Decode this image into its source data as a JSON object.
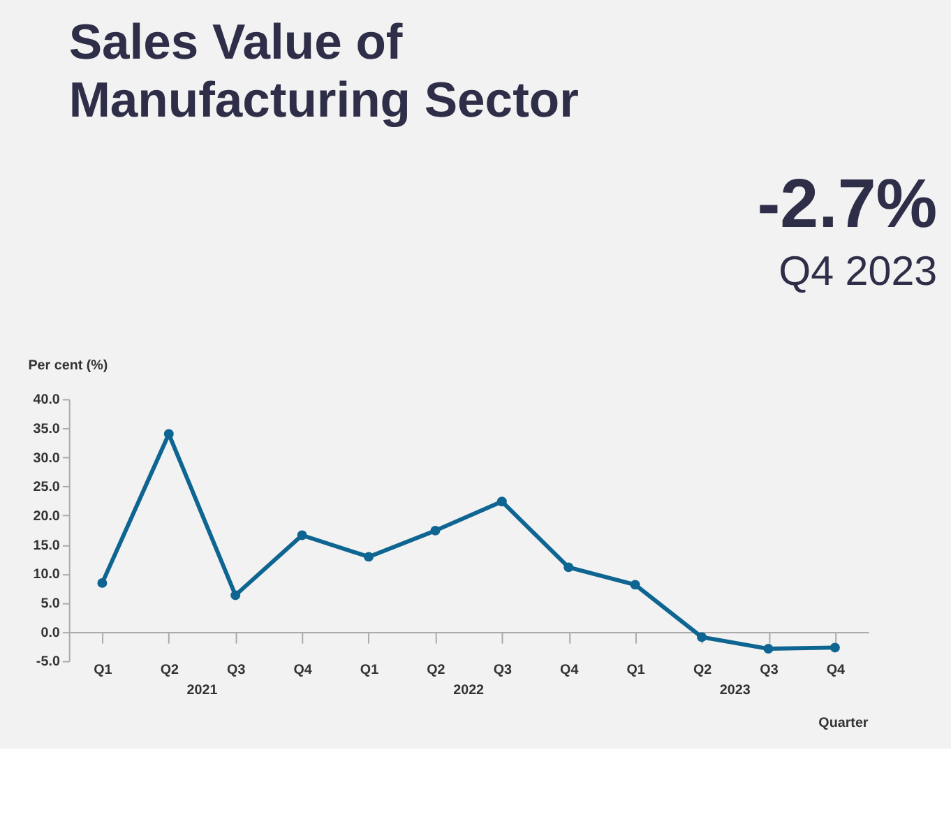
{
  "chart_data": {
    "type": "line",
    "title": "Sales Value of Manufacturing Sector",
    "ylabel": "Per cent (%)",
    "xlabel": "Quarter",
    "categories": [
      "Q1",
      "Q2",
      "Q3",
      "Q4",
      "Q1",
      "Q2",
      "Q3",
      "Q4",
      "Q1",
      "Q2",
      "Q3",
      "Q4"
    ],
    "series": [
      {
        "color": "#0e6591",
        "values": [
          8.4,
          34.0,
          6.3,
          16.6,
          12.9,
          17.4,
          22.4,
          11.1,
          8.1,
          -0.9,
          -2.9,
          -2.7
        ]
      }
    ],
    "annotations": [
      "-2.7%",
      "Q4 2023",
      "2021",
      "2022",
      "2023"
    ],
    "ylim": [
      -5,
      40
    ],
    "yticks": [
      {
        "value": -5,
        "label": "-5.0"
      },
      {
        "value": 0,
        "label": "0.0"
      },
      {
        "value": 5,
        "label": "5.0"
      },
      {
        "value": 10,
        "label": "10.0"
      },
      {
        "value": 15,
        "label": "15.0"
      },
      {
        "value": 20,
        "label": "20.0"
      },
      {
        "value": 25,
        "label": "25.0"
      },
      {
        "value": 30,
        "label": "30.0"
      },
      {
        "value": 35,
        "label": "35.0"
      },
      {
        "value": 40,
        "label": "40.0"
      }
    ],
    "grid": false,
    "marker": "circle",
    "line_style": "solid"
  }
}
